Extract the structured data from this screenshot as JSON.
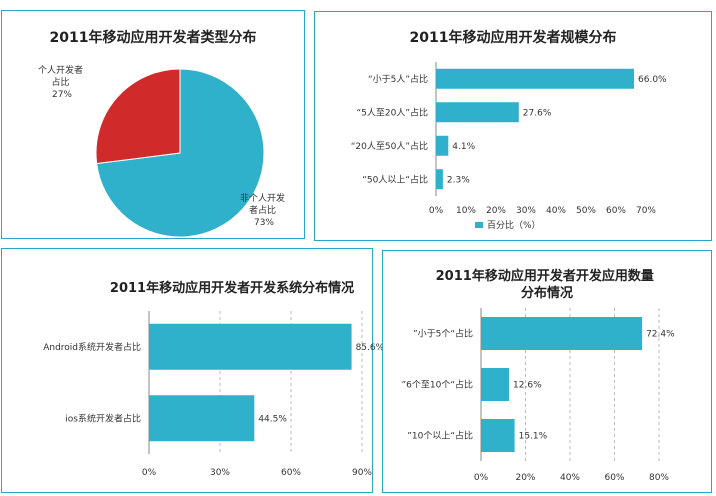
{
  "colors": {
    "teal": "#2fb1cc",
    "red": "#d12a2a",
    "border": "#2aa7c4"
  },
  "chart_data": [
    {
      "type": "pie",
      "title": "2011年移动应用开发者类型分布",
      "slices": [
        {
          "label_lines": [
            "非个人开发",
            "者占比",
            "73%"
          ],
          "value": 73,
          "color": "#2fb1cc"
        },
        {
          "label_lines": [
            "个人开发者",
            "占比",
            "27%"
          ],
          "value": 27,
          "color": "#d12a2a"
        }
      ]
    },
    {
      "type": "bar",
      "orientation": "horizontal",
      "title": "2011年移动应用开发者规模分布",
      "categories": [
        "“小于5人”占比",
        "“5人至20人”占比",
        "“20人至50人”占比",
        "“50人以上“占比"
      ],
      "values": [
        66.0,
        27.6,
        4.1,
        2.3
      ],
      "data_labels": [
        "66.0%",
        "27.6%",
        "4.1%",
        "2.3%"
      ],
      "xlim": [
        0,
        70
      ],
      "ticks": [
        "0%",
        "10%",
        "20%",
        "30%",
        "40%",
        "50%",
        "60%",
        "70%"
      ],
      "legend": {
        "label": "百分比（%）",
        "position": "bottom"
      },
      "grid": false
    },
    {
      "type": "bar",
      "orientation": "horizontal",
      "title": "2011年移动应用开发者开发系统分布情况",
      "categories": [
        "Android系统开发者占比",
        "ios系统开发者占比"
      ],
      "values": [
        85.6,
        44.5
      ],
      "data_labels": [
        "85.6%",
        "44.5%"
      ],
      "xlim": [
        0,
        90
      ],
      "ticks": [
        "0%",
        "30%",
        "60%",
        "90%"
      ],
      "grid": true
    },
    {
      "type": "bar",
      "orientation": "horizontal",
      "title_lines": [
        "2011年移动应用开发者开发应用数量",
        "分布情况"
      ],
      "categories": [
        "”小于5个“占比",
        "”6个至10个“占比",
        "”10个以上“占比"
      ],
      "values": [
        72.4,
        12.6,
        15.1
      ],
      "data_labels": [
        "72.4%",
        "12.6%",
        "15.1%"
      ],
      "xlim": [
        0,
        80
      ],
      "ticks": [
        "0%",
        "20%",
        "40%",
        "60%",
        "80%"
      ],
      "grid": true
    }
  ]
}
